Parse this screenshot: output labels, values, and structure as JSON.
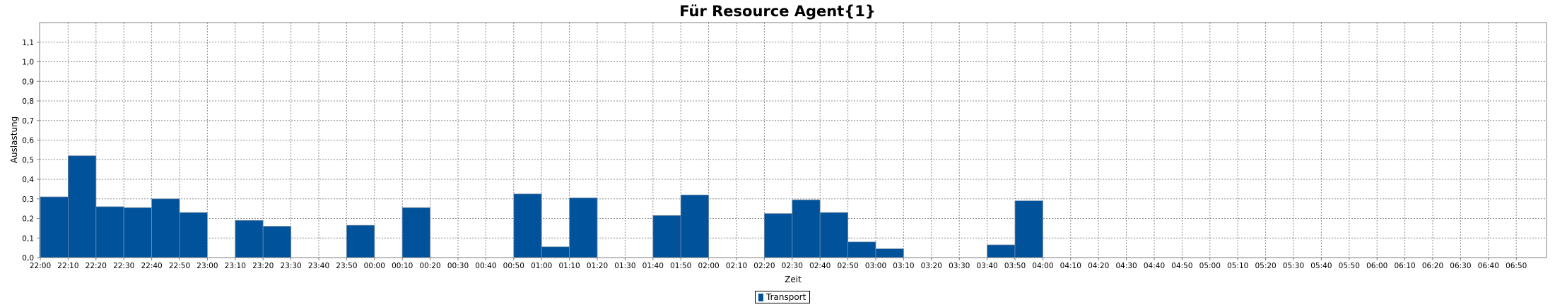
{
  "chart_data": {
    "type": "bar",
    "title": "Für Resource Agent{1}",
    "xlabel": "Zeit",
    "ylabel": "Auslastung",
    "ylim": [
      0,
      1.2
    ],
    "yticks": [
      "0,0",
      "0,1",
      "0,2",
      "0,3",
      "0,4",
      "0,5",
      "0,6",
      "0,7",
      "0,8",
      "0,9",
      "1,0",
      "1,1"
    ],
    "categories": [
      "22:00",
      "22:10",
      "22:20",
      "22:30",
      "22:40",
      "22:50",
      "23:00",
      "23:10",
      "23:20",
      "23:30",
      "23:40",
      "23:50",
      "00:00",
      "00:10",
      "00:20",
      "00:30",
      "00:40",
      "00:50",
      "01:00",
      "01:10",
      "01:20",
      "01:30",
      "01:40",
      "01:50",
      "02:00",
      "02:10",
      "02:20",
      "02:30",
      "02:40",
      "02:50",
      "03:00",
      "03:10",
      "03:20",
      "03:30",
      "03:40",
      "03:50",
      "04:00",
      "04:10",
      "04:20",
      "04:30",
      "04:40",
      "04:50",
      "05:00",
      "05:10",
      "05:20",
      "05:30",
      "05:40",
      "05:50",
      "06:00",
      "06:10",
      "06:20",
      "06:30",
      "06:40",
      "06:50"
    ],
    "series": [
      {
        "name": "Transport",
        "color": "#00529B",
        "values": [
          0.31,
          0.52,
          0.26,
          0.255,
          0.3,
          0.23,
          0,
          0.19,
          0.16,
          0,
          0,
          0.165,
          0,
          0.255,
          0,
          0,
          0,
          0.325,
          0.055,
          0.305,
          0,
          0,
          0.215,
          0.32,
          0,
          0,
          0.225,
          0.295,
          0.23,
          0.08,
          0.045,
          0,
          0,
          0,
          0.065,
          0.29,
          0,
          0,
          0,
          0,
          0,
          0,
          0,
          0,
          0,
          0,
          0,
          0,
          0,
          0,
          0,
          0,
          0,
          0
        ]
      }
    ],
    "grid": true,
    "legend_position": "bottom-center"
  }
}
